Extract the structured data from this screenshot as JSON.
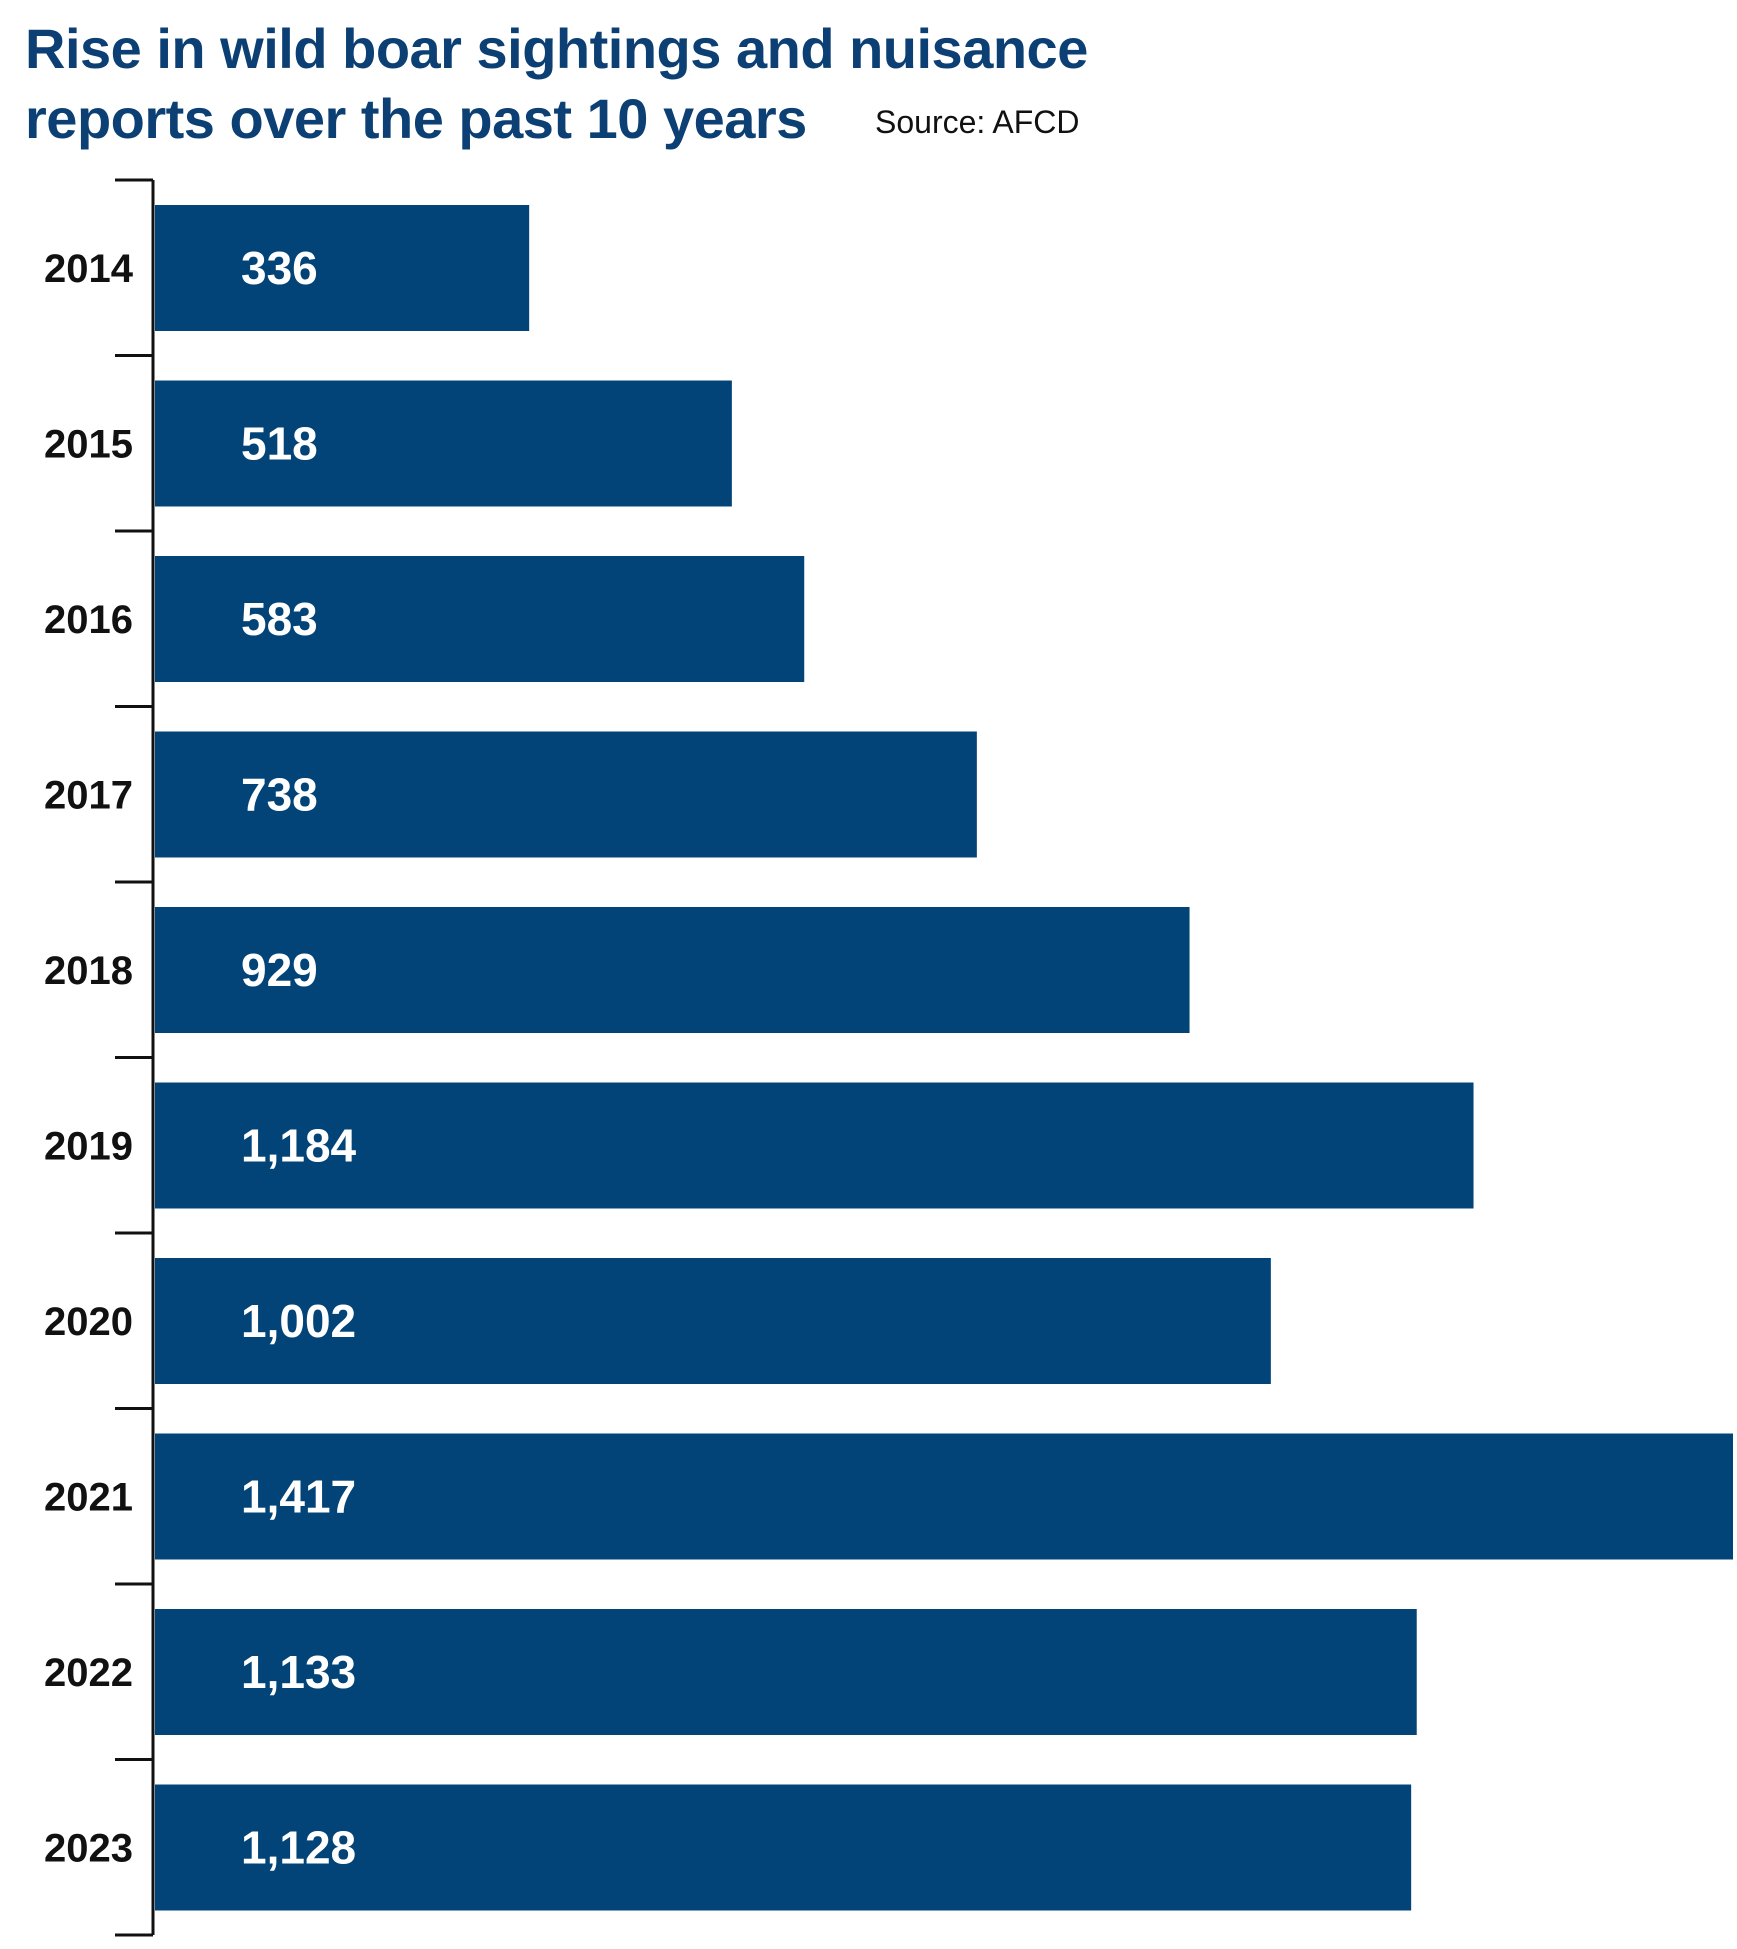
{
  "title_line1": "Rise in wild boar sightings and nuisance",
  "title_line2": "reports over the past 10 years",
  "source": "Source: AFCD",
  "colors": {
    "bar": "#024477",
    "title": "#0c3f73",
    "axis": "#111111"
  },
  "chart_data": {
    "type": "bar",
    "orientation": "horizontal",
    "categories": [
      "2014",
      "2015",
      "2016",
      "2017",
      "2018",
      "2019",
      "2020",
      "2021",
      "2022",
      "2023"
    ],
    "values": [
      336,
      518,
      583,
      738,
      929,
      1184,
      1002,
      1417,
      1133,
      1128
    ],
    "value_labels": [
      "336",
      "518",
      "583",
      "738",
      "929",
      "1,184",
      "1,002",
      "1,417",
      "1,133",
      "1,128"
    ],
    "title": "Rise in wild boar sightings and nuisance reports over the past 10 years",
    "xlabel": "",
    "ylabel": "",
    "xlim": [
      0,
      1417
    ],
    "grid": false,
    "legend": "none"
  }
}
